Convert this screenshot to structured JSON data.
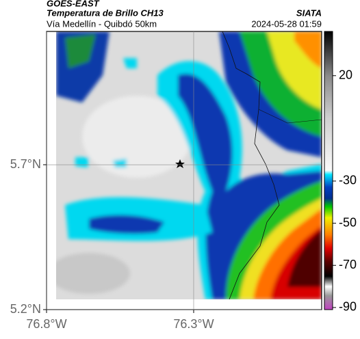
{
  "header": {
    "satellite": "GOES-EAST",
    "product": "Temperatura de Brillo CH13",
    "region": "Vía Medellín - Quibdó 50km",
    "source": "SIATA",
    "timestamp": "2024-05-28 01:59"
  },
  "map": {
    "xlim": [
      -76.8,
      -75.865
    ],
    "ylim": [
      5.2,
      6.16
    ],
    "xticks": [
      {
        "value": -76.8,
        "label": "76.8°W"
      },
      {
        "value": -76.3,
        "label": "76.3°W"
      }
    ],
    "yticks": [
      {
        "value": 5.2,
        "label": "5.2°N"
      },
      {
        "value": 5.7,
        "label": "5.7°N"
      }
    ]
  },
  "colorbar": {
    "lim": [
      -91,
      41
    ],
    "ticks": [
      20,
      -30,
      -50,
      -70,
      -90
    ]
  }
}
